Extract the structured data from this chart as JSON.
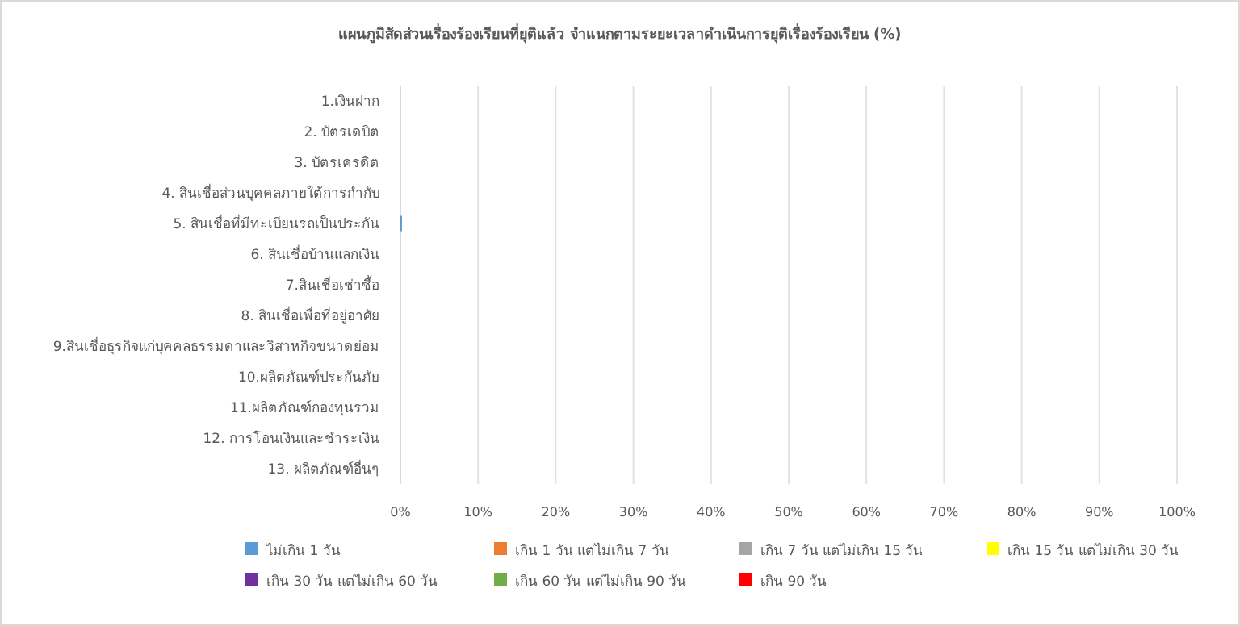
{
  "chart_data": {
    "type": "bar",
    "orientation": "horizontal",
    "stacked": true,
    "grid": "x",
    "legend": "bottom",
    "title": "แผนภูมิสัดส่วนเรื่องร้องเรียนที่ยุติแล้ว จำแนกตามระยะเวลาดำเนินการยุติเรื่องร้องเรียน (%)",
    "categories": [
      "1.เงินฝาก",
      "2. บัตรเดบิต",
      "3. บัตรเครดิต",
      "4. สินเชื่อส่วนบุคคลภายใต้การกำกับ",
      "5. สินเชื่อที่มีทะเบียนรถเป็นประกัน",
      "6. สินเชื่อบ้านแลกเงิน",
      "7.สินเชื่อเช่าซื้อ",
      "8. สินเชื่อเพื่อที่อยู่อาศัย",
      "9.สินเชื่อธุรกิจแก่บุคคลธรรมดาและวิสาหกิจขนาดย่อม",
      "10.ผลิตภัณฑ์ประกันภัย",
      "11.ผลิตภัณฑ์กองทุนรวม",
      "12. การโอนเงินและชำระเงิน",
      "13. ผลิตภัณฑ์อื่นๆ"
    ],
    "xlim": [
      0,
      100
    ],
    "xticks": [
      {
        "value": 0,
        "label": "0%"
      },
      {
        "value": 10,
        "label": "10%"
      },
      {
        "value": 20,
        "label": "20%"
      },
      {
        "value": 30,
        "label": "30%"
      },
      {
        "value": 40,
        "label": "40%"
      },
      {
        "value": 50,
        "label": "50%"
      },
      {
        "value": 60,
        "label": "60%"
      },
      {
        "value": 70,
        "label": "70%"
      },
      {
        "value": 80,
        "label": "80%"
      },
      {
        "value": 90,
        "label": "90%"
      },
      {
        "value": 100,
        "label": "100%"
      }
    ],
    "series": [
      {
        "name": "ไม่เกิน 1 วัน",
        "color": "#5b9bd5",
        "values": [
          0,
          0,
          0,
          0,
          0.2,
          0,
          0,
          0,
          0,
          0,
          0,
          0,
          0
        ]
      },
      {
        "name": "เกิน 1 วัน แต่ไม่เกิน 7 วัน",
        "color": "#ed7d31",
        "values": [
          0,
          0,
          0,
          0,
          0,
          0,
          0,
          0,
          0,
          0,
          0,
          0,
          0
        ]
      },
      {
        "name": "เกิน 7 วัน แต่ไม่เกิน 15 วัน",
        "color": "#a5a5a5",
        "values": [
          0,
          0,
          0,
          0,
          0,
          0,
          0,
          0,
          0,
          0,
          0,
          0,
          0
        ]
      },
      {
        "name": "เกิน 15 วัน แต่ไม่เกิน 30 วัน",
        "color": "#ffff00",
        "values": [
          0,
          0,
          0,
          0,
          0,
          0,
          0,
          0,
          0,
          0,
          0,
          0,
          0
        ]
      },
      {
        "name": "เกิน 30 วัน แต่ไม่เกิน 60 วัน",
        "color": "#7030a0",
        "values": [
          0,
          0,
          0,
          0,
          0,
          0,
          0,
          0,
          0,
          0,
          0,
          0,
          0
        ]
      },
      {
        "name": "เกิน 60 วัน แต่ไม่เกิน 90 วัน",
        "color": "#70ad47",
        "values": [
          0,
          0,
          0,
          0,
          0,
          0,
          0,
          0,
          0,
          0,
          0,
          0,
          0
        ]
      },
      {
        "name": "เกิน 90 วัน",
        "color": "#ff0000",
        "values": [
          0,
          0,
          0,
          0,
          0,
          0,
          0,
          0,
          0,
          0,
          0,
          0,
          0
        ]
      }
    ]
  }
}
